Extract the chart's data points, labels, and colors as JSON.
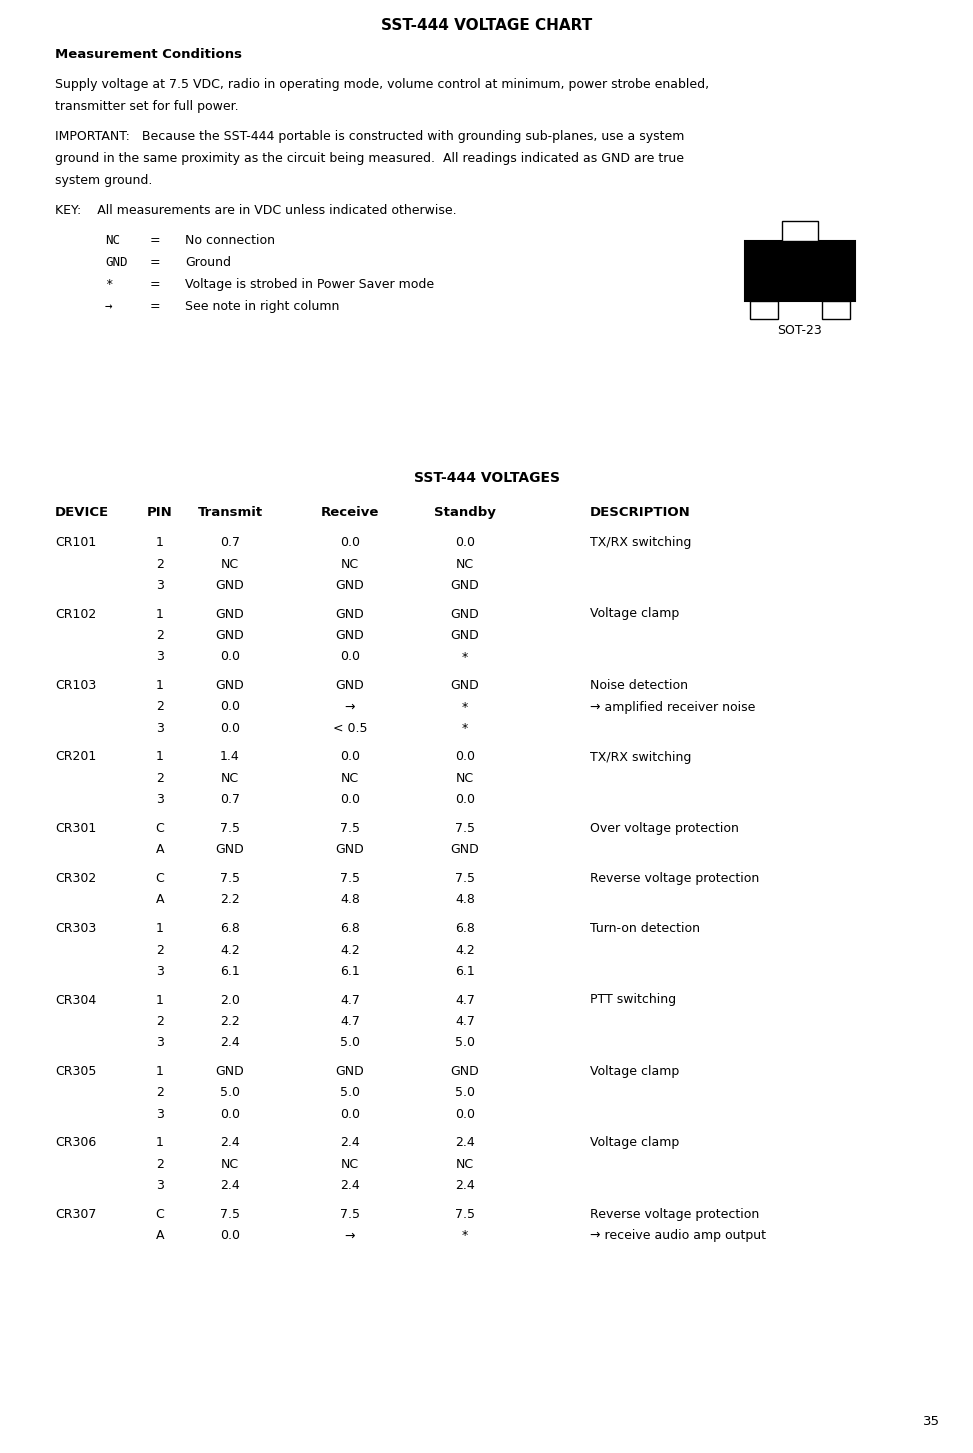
{
  "title": "SST-444 VOLTAGE CHART",
  "section_title": "Measurement Conditions",
  "para1": "Supply voltage at 7.5 VDC, radio in operating mode, volume control at minimum, power strobe enabled,\ntransmitter set for full power.",
  "para2": "IMPORTANT:   Because the SST-444 portable is constructed with grounding sub-planes, use a system\nground in the same proximity as the circuit being measured.  All readings indicated as GND are true\nsystem ground.",
  "key_line": "KEY:    All measurements are in VDC unless indicated otherwise.",
  "key_items": [
    [
      "NC",
      "=",
      "No connection"
    ],
    [
      "GND",
      "=",
      "Ground"
    ],
    [
      "*",
      "=",
      "Voltage is strobed in Power Saver mode"
    ],
    [
      "→",
      "=",
      "See note in right column"
    ]
  ],
  "sot23_label": "SOT-23",
  "voltages_title": "SST-444 VOLTAGES",
  "col_headers": [
    "DEVICE",
    "PIN",
    "Transmit",
    "Receive",
    "Standby",
    "DESCRIPTION"
  ],
  "table_data": [
    [
      "CR101",
      "1",
      "0.7",
      "0.0",
      "0.0",
      "TX/RX switching"
    ],
    [
      "",
      "2",
      "NC",
      "NC",
      "NC",
      ""
    ],
    [
      "",
      "3",
      "GND",
      "GND",
      "GND",
      ""
    ],
    [
      "CR102",
      "1",
      "GND",
      "GND",
      "GND",
      "Voltage clamp"
    ],
    [
      "",
      "2",
      "GND",
      "GND",
      "GND",
      ""
    ],
    [
      "",
      "3",
      "0.0",
      "0.0",
      "*",
      ""
    ],
    [
      "CR103",
      "1",
      "GND",
      "GND",
      "GND",
      "Noise detection"
    ],
    [
      "",
      "2",
      "0.0",
      "→",
      "*",
      "→ amplified receiver noise"
    ],
    [
      "",
      "3",
      "0.0",
      "< 0.5",
      "*",
      ""
    ],
    [
      "CR201",
      "1",
      "1.4",
      "0.0",
      "0.0",
      "TX/RX switching"
    ],
    [
      "",
      "2",
      "NC",
      "NC",
      "NC",
      ""
    ],
    [
      "",
      "3",
      "0.7",
      "0.0",
      "0.0",
      ""
    ],
    [
      "CR301",
      "C",
      "7.5",
      "7.5",
      "7.5",
      "Over voltage protection"
    ],
    [
      "",
      "A",
      "GND",
      "GND",
      "GND",
      ""
    ],
    [
      "CR302",
      "C",
      "7.5",
      "7.5",
      "7.5",
      "Reverse voltage protection"
    ],
    [
      "",
      "A",
      "2.2",
      "4.8",
      "4.8",
      ""
    ],
    [
      "CR303",
      "1",
      "6.8",
      "6.8",
      "6.8",
      "Turn-on detection"
    ],
    [
      "",
      "2",
      "4.2",
      "4.2",
      "4.2",
      ""
    ],
    [
      "",
      "3",
      "6.1",
      "6.1",
      "6.1",
      ""
    ],
    [
      "CR304",
      "1",
      "2.0",
      "4.7",
      "4.7",
      "PTT switching"
    ],
    [
      "",
      "2",
      "2.2",
      "4.7",
      "4.7",
      ""
    ],
    [
      "",
      "3",
      "2.4",
      "5.0",
      "5.0",
      ""
    ],
    [
      "CR305",
      "1",
      "GND",
      "GND",
      "GND",
      "Voltage clamp"
    ],
    [
      "",
      "2",
      "5.0",
      "5.0",
      "5.0",
      ""
    ],
    [
      "",
      "3",
      "0.0",
      "0.0",
      "0.0",
      ""
    ],
    [
      "CR306",
      "1",
      "2.4",
      "2.4",
      "2.4",
      "Voltage clamp"
    ],
    [
      "",
      "2",
      "NC",
      "NC",
      "NC",
      ""
    ],
    [
      "",
      "3",
      "2.4",
      "2.4",
      "2.4",
      ""
    ],
    [
      "CR307",
      "C",
      "7.5",
      "7.5",
      "7.5",
      "Reverse voltage protection"
    ],
    [
      "",
      "A",
      "0.0",
      "→",
      "*",
      "→ receive audio amp output"
    ]
  ],
  "page_number": "35",
  "bg_color": "#ffffff",
  "text_color": "#000000",
  "font_family": "monospace"
}
